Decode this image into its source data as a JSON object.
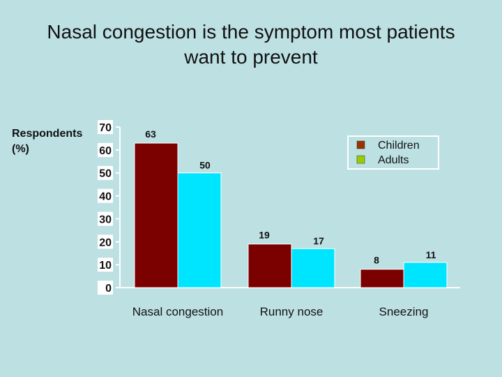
{
  "chart_data": {
    "type": "bar",
    "title": [
      "Nasal congestion is the symptom most patients",
      "want to prevent"
    ],
    "ylabel": [
      "Respondents",
      "(%)"
    ],
    "xlabel": "",
    "categories": [
      "Nasal congestion",
      "Runny nose",
      "Sneezing"
    ],
    "series": [
      {
        "name": "Children",
        "values": [
          63,
          19,
          8
        ],
        "color": "#7b0000"
      },
      {
        "name": "Adults",
        "values": [
          50,
          17,
          11
        ],
        "color": "#00e5ff"
      }
    ],
    "ylim": [
      0,
      70
    ],
    "yticks": [
      0,
      10,
      20,
      30,
      40,
      50,
      60,
      70
    ],
    "legend": "top-right",
    "grid": false
  }
}
